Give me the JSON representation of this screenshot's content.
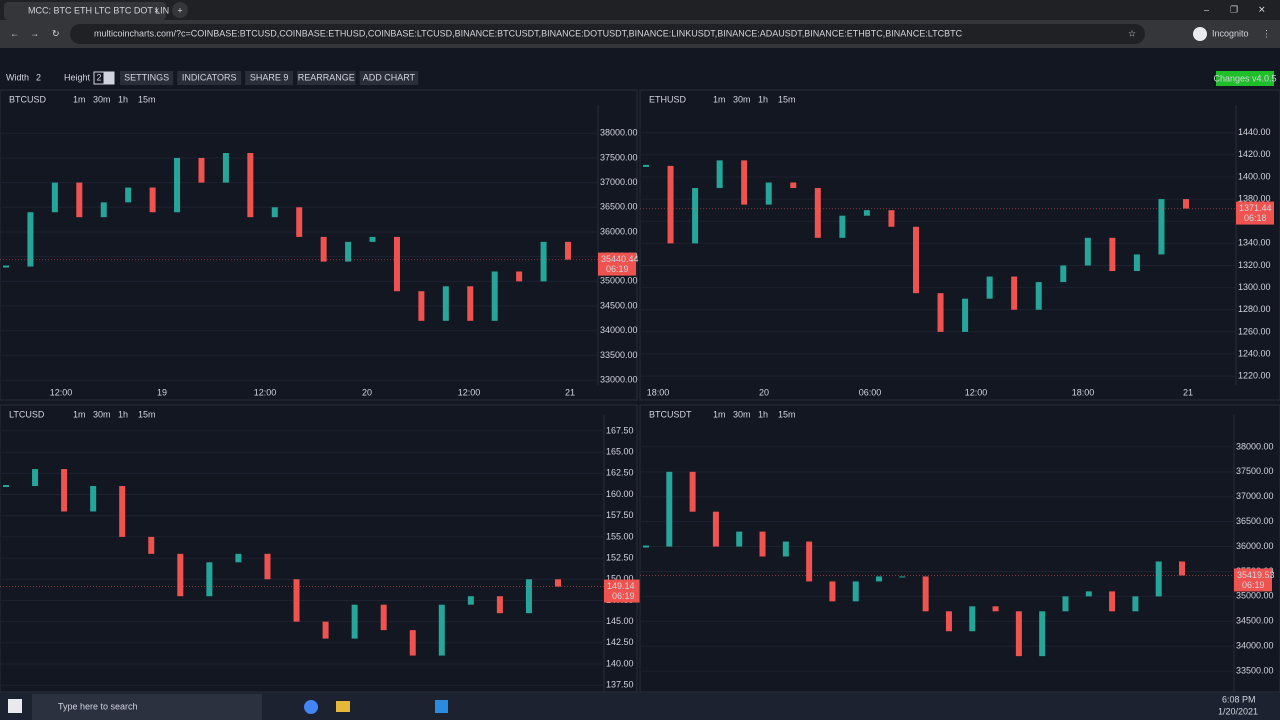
{
  "browser": {
    "tab_title": "MCC: BTC ETH LTC BTC DOT LIN",
    "url": "multicoincharts.com/?c=COINBASE:BTCUSD,COINBASE:ETHUSD,COINBASE:LTCUSD,BINANCE:BTCUSDT,BINANCE:DOTUSDT,BINANCE:LINKUSDT,BINANCE:ADAUSDT,BINANCE:ETHBTC,BINANCE:LTCBTC",
    "profile": "Incognito"
  },
  "toolbar": {
    "width_label": "Width",
    "width_value": "2",
    "height_label": "Height",
    "height_values": [
      "2",
      "3"
    ],
    "buttons": [
      "SETTINGS",
      "INDICATORS",
      "SHARE 9",
      "REARRANGE",
      "ADD CHART"
    ],
    "version": "Changes v4.0.5"
  },
  "intervals": [
    "1m",
    "30m",
    "1h",
    "15m"
  ],
  "charts": [
    {
      "type": "candlestick",
      "symbol": "BTCUSD",
      "ylim": [
        32900,
        38370
      ],
      "yticks": [
        {
          "value": 38000,
          "label": "38000.00"
        },
        {
          "value": 37500,
          "label": "37500.00"
        },
        {
          "value": 37000,
          "label": "37000.00"
        },
        {
          "value": 36500,
          "label": "36500.00"
        },
        {
          "value": 36000,
          "label": "36000.00"
        },
        {
          "value": 35500,
          "label": "35500.00"
        },
        {
          "value": 35000,
          "label": "35000.00"
        },
        {
          "value": 34500,
          "label": "34500.00"
        },
        {
          "value": 34000,
          "label": "34000.00"
        },
        {
          "value": 33500,
          "label": "33500.00"
        },
        {
          "value": 33000,
          "label": "33000.00"
        }
      ],
      "time_labels": [
        "12:00",
        "19",
        "12:00",
        "20",
        "12:00",
        "21"
      ],
      "closes": [
        35300,
        36400,
        37000,
        36300,
        36600,
        36900,
        36400,
        37500,
        37000,
        37600,
        36300,
        36500,
        35900,
        35400,
        35800,
        35900,
        34800,
        34200,
        34900,
        34200,
        35200,
        35000,
        35800,
        35440.44
      ],
      "last_label": "35440.44",
      "countdown": "06:19"
    },
    {
      "type": "candlestick",
      "symbol": "ETHUSD",
      "ylim": [
        1212,
        1456
      ],
      "yticks": [
        {
          "value": 1440,
          "label": "1440.00"
        },
        {
          "value": 1420,
          "label": "1420.00"
        },
        {
          "value": 1400,
          "label": "1400.00"
        },
        {
          "value": 1380,
          "label": "1380.00"
        },
        {
          "value": 1360,
          "label": "1360.00"
        },
        {
          "value": 1340,
          "label": "1340.00"
        },
        {
          "value": 1320,
          "label": "1320.00"
        },
        {
          "value": 1300,
          "label": "1300.00"
        },
        {
          "value": 1280,
          "label": "1280.00"
        },
        {
          "value": 1260,
          "label": "1260.00"
        },
        {
          "value": 1240,
          "label": "1240.00"
        },
        {
          "value": 1220,
          "label": "1220.00"
        }
      ],
      "time_labels": [
        "18:00",
        "20",
        "06:00",
        "12:00",
        "18:00",
        "21"
      ],
      "closes": [
        1410,
        1340,
        1390,
        1415,
        1375,
        1395,
        1390,
        1345,
        1365,
        1370,
        1355,
        1295,
        1260,
        1290,
        1310,
        1280,
        1305,
        1320,
        1345,
        1315,
        1330,
        1380,
        1371.44
      ],
      "last_label": "1371.44",
      "countdown": "06:18"
    },
    {
      "type": "candlestick",
      "symbol": "LTCUSD",
      "ylim": [
        136.7,
        168.2
      ],
      "yticks": [
        {
          "value": 167.5,
          "label": "167.50"
        },
        {
          "value": 165,
          "label": "165.00"
        },
        {
          "value": 162.5,
          "label": "162.50"
        },
        {
          "value": 160,
          "label": "160.00"
        },
        {
          "value": 157.5,
          "label": "157.50"
        },
        {
          "value": 155,
          "label": "155.00"
        },
        {
          "value": 152.5,
          "label": "152.50"
        },
        {
          "value": 150,
          "label": "150.00"
        },
        {
          "value": 147.5,
          "label": "147.50"
        },
        {
          "value": 145,
          "label": "145.00"
        },
        {
          "value": 142.5,
          "label": "142.50"
        },
        {
          "value": 140,
          "label": "140.00"
        },
        {
          "value": 137.5,
          "label": "137.50"
        }
      ],
      "time_labels": [],
      "closes": [
        161,
        163,
        158,
        161,
        155,
        153,
        148,
        152,
        153,
        150,
        145,
        143,
        147,
        144,
        141,
        147,
        148,
        146,
        150,
        149.14
      ],
      "last_label": "149.14",
      "countdown": "06:19"
    },
    {
      "type": "candlestick",
      "symbol": "BTCUSDT",
      "ylim": [
        33080,
        38440
      ],
      "yticks": [
        {
          "value": 38000,
          "label": "38000.00"
        },
        {
          "value": 37500,
          "label": "37500.00"
        },
        {
          "value": 37000,
          "label": "37000.00"
        },
        {
          "value": 36500,
          "label": "36500.00"
        },
        {
          "value": 36000,
          "label": "36000.00"
        },
        {
          "value": 35500,
          "label": "35500.00"
        },
        {
          "value": 35000,
          "label": "35000.00"
        },
        {
          "value": 34500,
          "label": "34500.00"
        },
        {
          "value": 34000,
          "label": "34000.00"
        },
        {
          "value": 33500,
          "label": "33500.00"
        }
      ],
      "time_labels": [],
      "closes": [
        36000,
        37500,
        36700,
        36000,
        36300,
        35800,
        36100,
        35300,
        34900,
        35300,
        35400,
        35400,
        34700,
        34300,
        34800,
        34700,
        33800,
        34700,
        35000,
        35100,
        34700,
        35000,
        35700,
        35419.53
      ],
      "last_label": "35419.53",
      "countdown": "06:19"
    }
  ],
  "taskbar": {
    "search": "Type here to search",
    "time": "6:08 PM",
    "date": "1/20/2021"
  }
}
